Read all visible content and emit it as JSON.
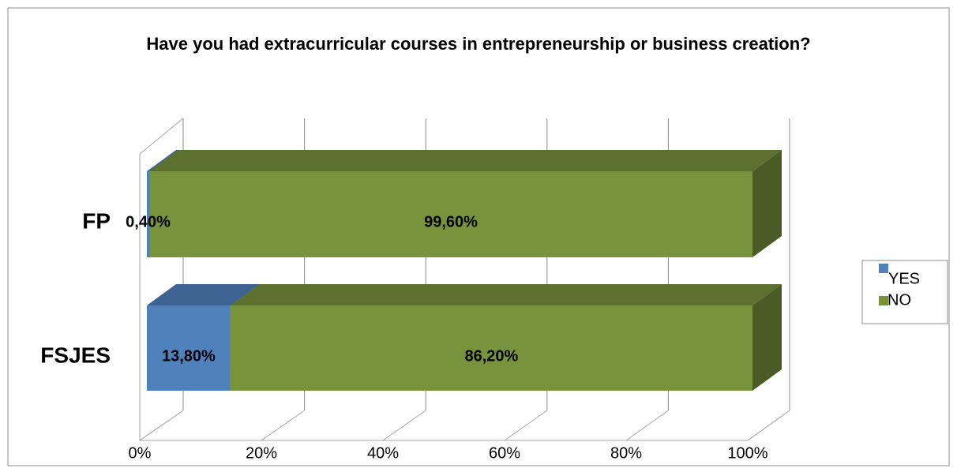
{
  "chart_data": {
    "type": "bar3d_stacked_horizontal",
    "title": "Have you had extracurricular courses in entrepreneurship or business creation?",
    "categories": [
      "FP",
      "FSJES"
    ],
    "series": [
      {
        "name": "YES",
        "color": "#4f81bd",
        "values": [
          0.4,
          13.8
        ],
        "value_labels": [
          "0,40%",
          "13,80%"
        ]
      },
      {
        "name": "NO",
        "color": "#77933c",
        "values": [
          99.6,
          86.2
        ],
        "value_labels": [
          "99,60%",
          "86,20%"
        ]
      }
    ],
    "xlim": [
      0,
      100
    ],
    "xticks": [
      {
        "value": 0,
        "label": "0%"
      },
      {
        "value": 20,
        "label": "20%"
      },
      {
        "value": 40,
        "label": "40%"
      },
      {
        "value": 60,
        "label": "60%"
      },
      {
        "value": 80,
        "label": "80%"
      },
      {
        "value": 100,
        "label": "100%"
      }
    ],
    "grid": true,
    "legend": "right"
  }
}
